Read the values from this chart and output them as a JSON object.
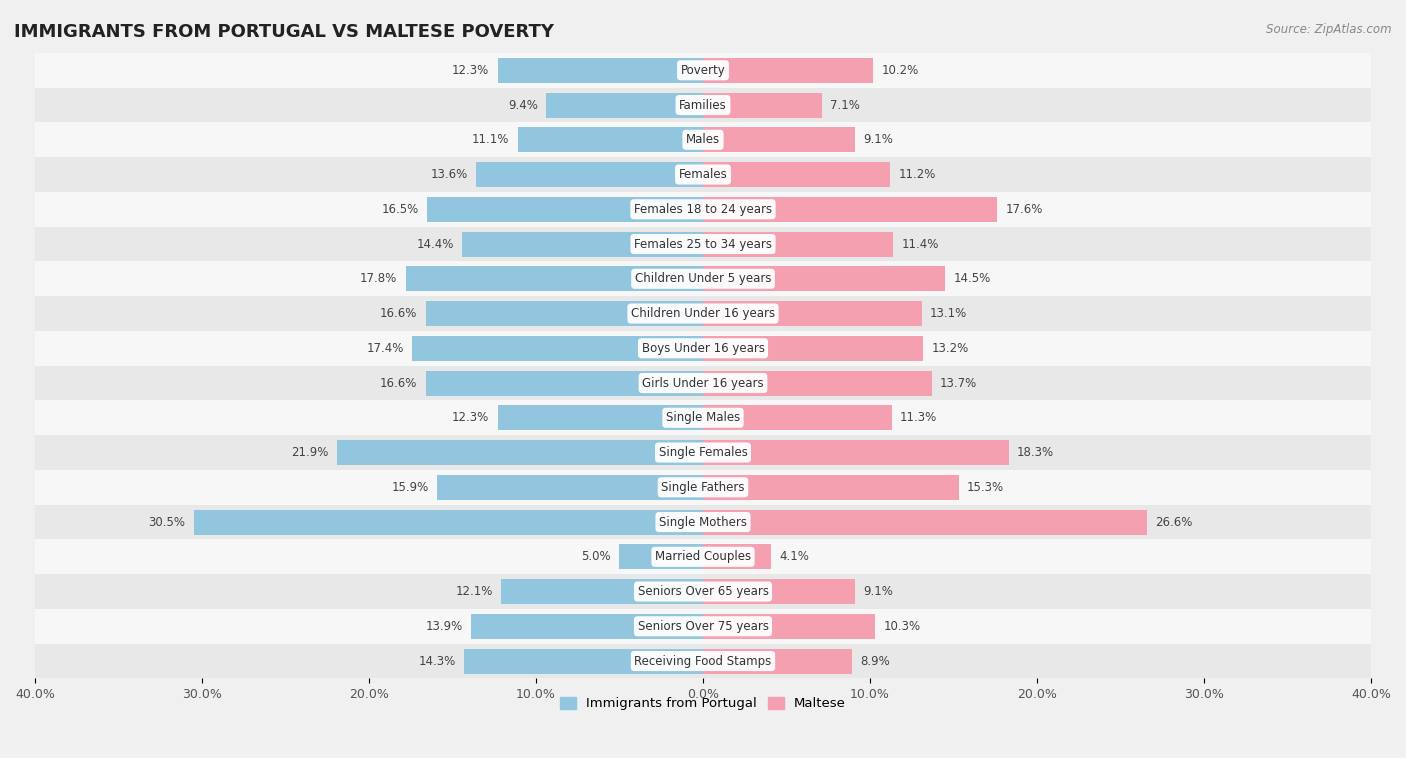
{
  "title": "IMMIGRANTS FROM PORTUGAL VS MALTESE POVERTY",
  "source": "Source: ZipAtlas.com",
  "categories": [
    "Poverty",
    "Families",
    "Males",
    "Females",
    "Females 18 to 24 years",
    "Females 25 to 34 years",
    "Children Under 5 years",
    "Children Under 16 years",
    "Boys Under 16 years",
    "Girls Under 16 years",
    "Single Males",
    "Single Females",
    "Single Fathers",
    "Single Mothers",
    "Married Couples",
    "Seniors Over 65 years",
    "Seniors Over 75 years",
    "Receiving Food Stamps"
  ],
  "portugal_values": [
    12.3,
    9.4,
    11.1,
    13.6,
    16.5,
    14.4,
    17.8,
    16.6,
    17.4,
    16.6,
    12.3,
    21.9,
    15.9,
    30.5,
    5.0,
    12.1,
    13.9,
    14.3
  ],
  "maltese_values": [
    10.2,
    7.1,
    9.1,
    11.2,
    17.6,
    11.4,
    14.5,
    13.1,
    13.2,
    13.7,
    11.3,
    18.3,
    15.3,
    26.6,
    4.1,
    9.1,
    10.3,
    8.9
  ],
  "portugal_color": "#92c5de",
  "maltese_color": "#f4a0b0",
  "background_color": "#f0f0f0",
  "row_color_light": "#f7f7f7",
  "row_color_dark": "#e8e8e8",
  "xlim": 40.0,
  "bar_height": 0.72,
  "legend_labels": [
    "Immigrants from Portugal",
    "Maltese"
  ],
  "title_fontsize": 13,
  "label_fontsize": 8.5,
  "value_fontsize": 8.5,
  "axis_label_fontsize": 9
}
